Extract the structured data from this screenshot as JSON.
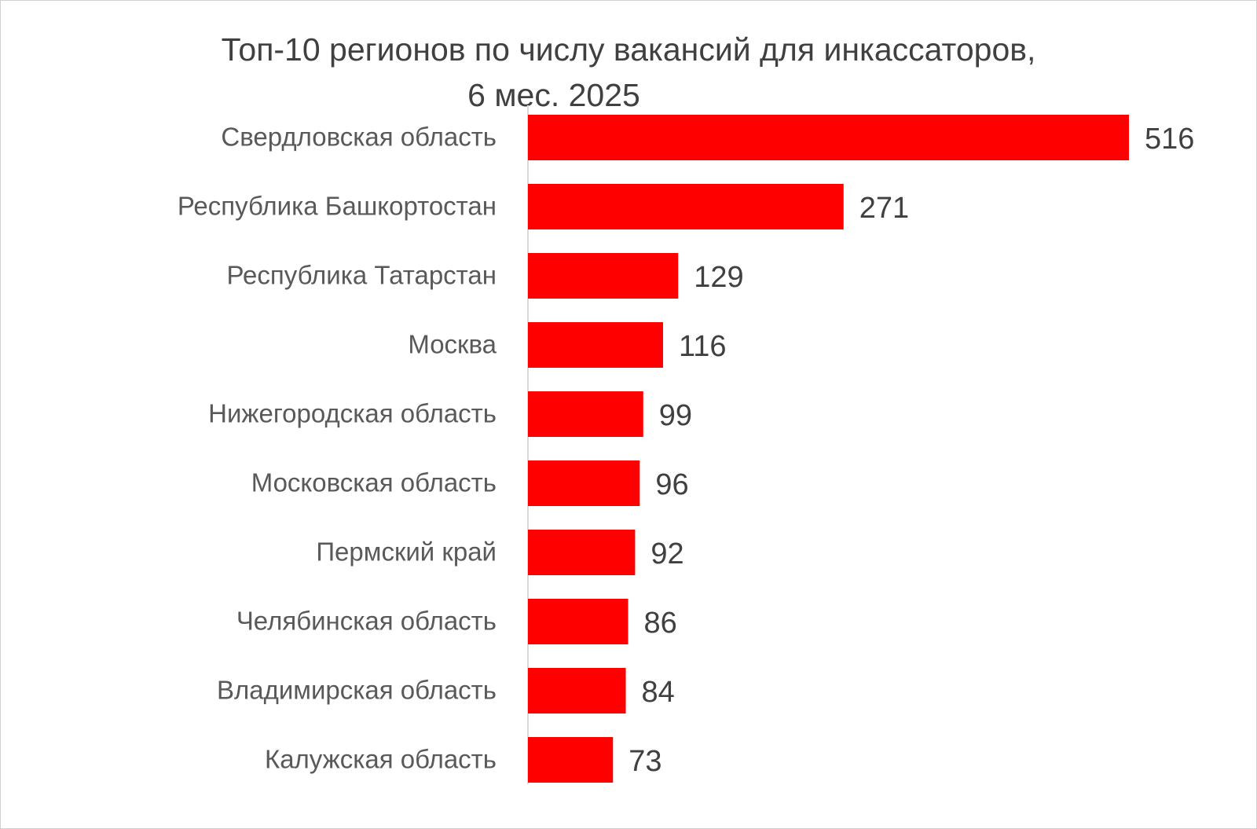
{
  "chart_data": {
    "type": "bar",
    "orientation": "horizontal",
    "title_line1": "Топ-10 регионов по числу вакансий для инкассаторов,",
    "title_line2": "6 мес. 2025",
    "categories": [
      "Свердловская область",
      "Республика Башкортостан",
      "Республика Татарстан",
      "Москва",
      "Нижегородская область",
      "Московская область",
      "Пермский край",
      "Челябинская область",
      "Владимирская область",
      "Калужская область"
    ],
    "values": [
      516,
      271,
      129,
      116,
      99,
      96,
      92,
      86,
      84,
      73
    ],
    "xlim": [
      0,
      516
    ],
    "bar_color": "#ff0000",
    "axis_color": "#d9d9d9",
    "grid": false,
    "legend": "none",
    "data_labels": true
  }
}
